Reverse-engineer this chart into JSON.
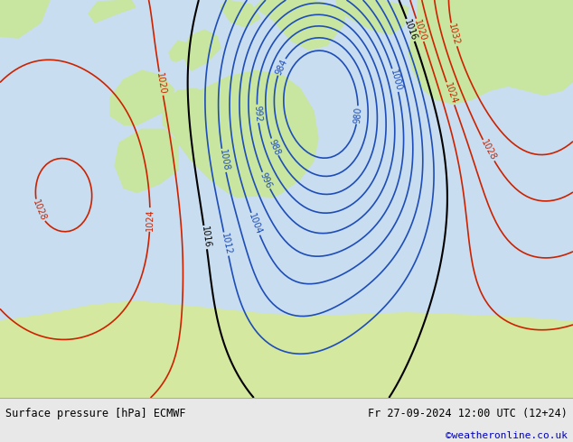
{
  "title_left": "Surface pressure [hPa] ECMWF",
  "title_right": "Fr 27-09-2024 12:00 UTC (12+24)",
  "credit": "©weatheronline.co.uk",
  "bg_color": "#c8ddf0",
  "land_color": "#c8e6a0",
  "footer_bg": "#e8e8e8",
  "fig_width": 6.34,
  "fig_height": 4.9,
  "pressure_base": 1016,
  "levels_step": 4,
  "levels_min": 980,
  "levels_max": 1036,
  "blue_color": "#1e4db7",
  "red_color": "#cc2200",
  "black_color": "#000000"
}
